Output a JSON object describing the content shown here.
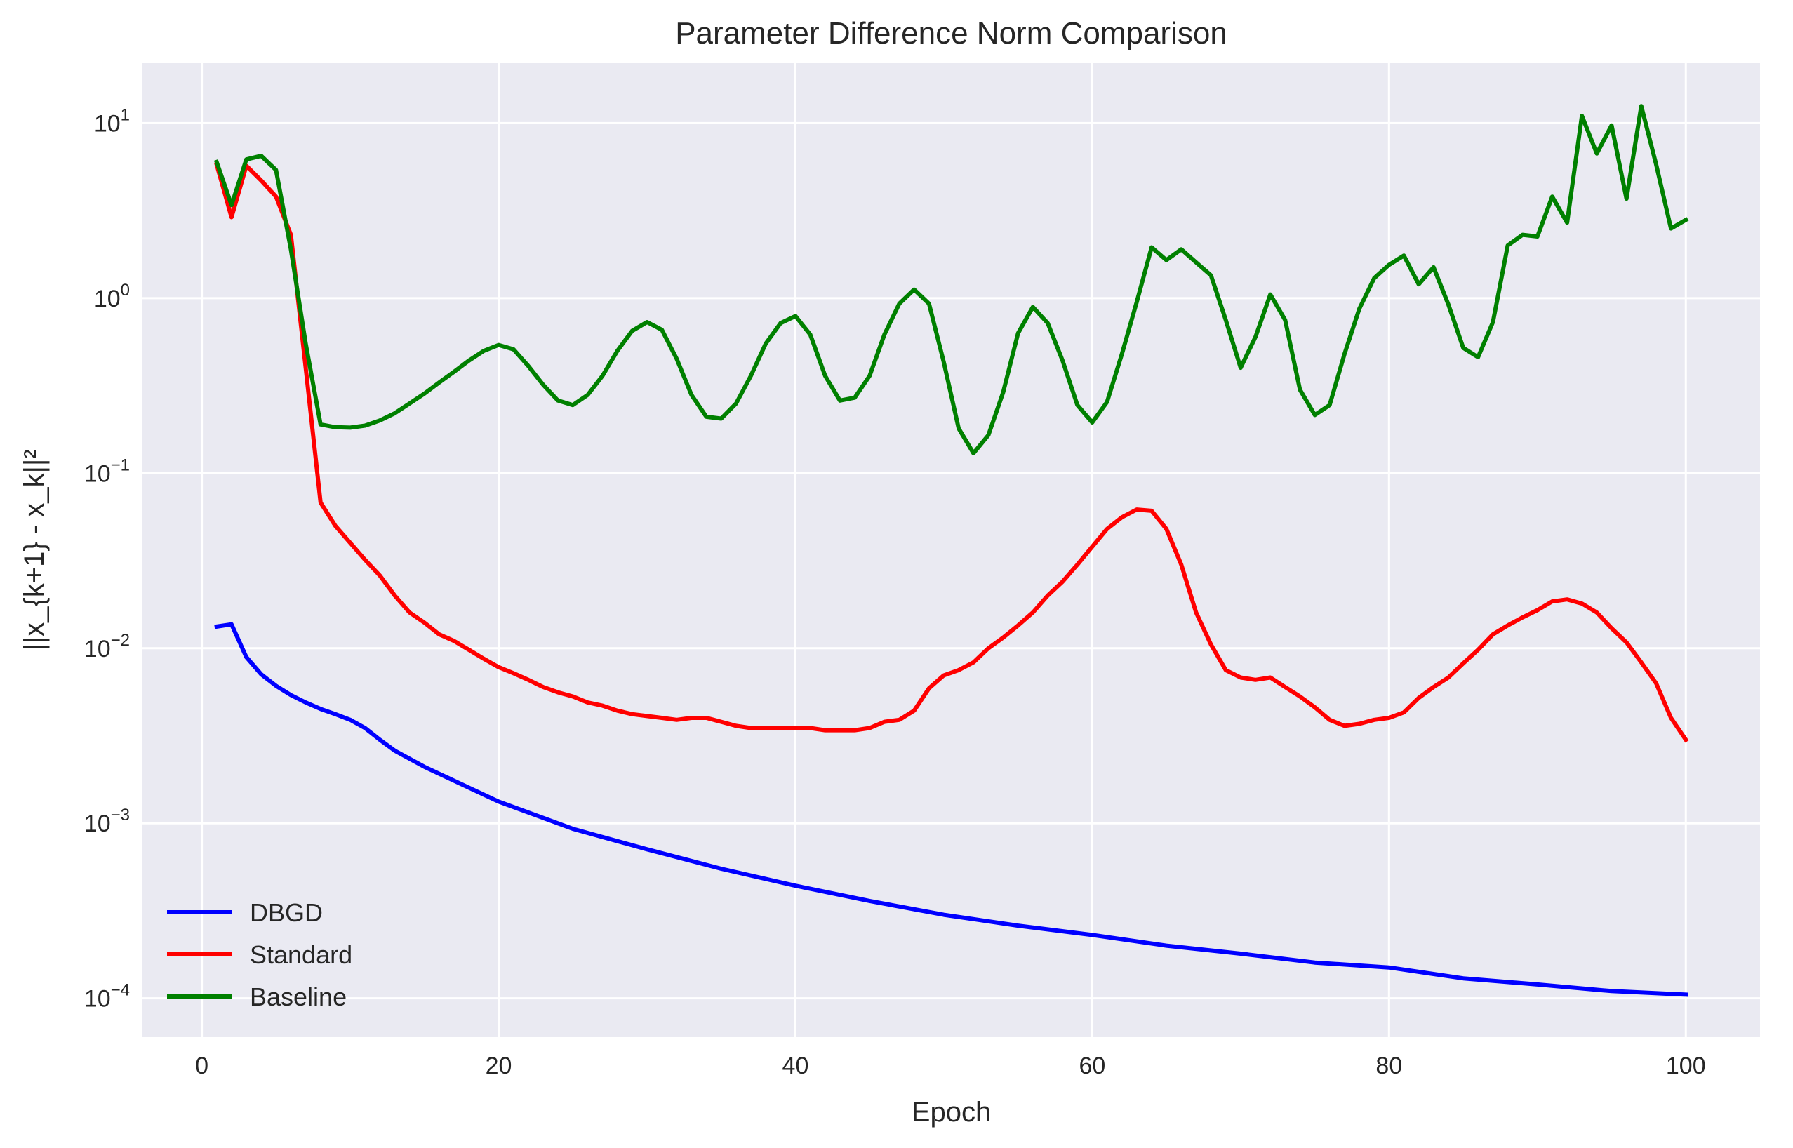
{
  "chart_data": {
    "type": "line",
    "title": "Parameter Difference Norm Comparison",
    "xlabel": "Epoch",
    "ylabel": "||x_{k+1} - x_k||²",
    "xlim": [
      -4,
      105
    ],
    "ylim": [
      6e-05,
      22
    ],
    "yscale": "log",
    "grid": true,
    "legend_position": "lower-left",
    "x_ticks": [
      0,
      20,
      40,
      60,
      80,
      100
    ],
    "y_ticks": [
      {
        "value": 0.0001,
        "base": "10",
        "exp": "−4"
      },
      {
        "value": 0.001,
        "base": "10",
        "exp": "−3"
      },
      {
        "value": 0.01,
        "base": "10",
        "exp": "−2"
      },
      {
        "value": 0.1,
        "base": "10",
        "exp": "−1"
      },
      {
        "value": 1,
        "base": "10",
        "exp": "0"
      },
      {
        "value": 10,
        "base": "10",
        "exp": "1"
      }
    ],
    "series": [
      {
        "name": "DBGD",
        "color": "#0000ff",
        "points": [
          [
            1,
            0.0133
          ],
          [
            2,
            0.0137
          ],
          [
            3,
            0.0089
          ],
          [
            4,
            0.0071
          ],
          [
            5,
            0.0061
          ],
          [
            6,
            0.0054
          ],
          [
            7,
            0.0049
          ],
          [
            8,
            0.0045
          ],
          [
            9,
            0.0042
          ],
          [
            10,
            0.0039
          ],
          [
            11,
            0.0035
          ],
          [
            12,
            0.003
          ],
          [
            13,
            0.0026
          ],
          [
            15,
            0.0021
          ],
          [
            20,
            0.00133
          ],
          [
            25,
            0.00093
          ],
          [
            30,
            0.00071
          ],
          [
            35,
            0.00055
          ],
          [
            40,
            0.00044
          ],
          [
            45,
            0.00036
          ],
          [
            50,
            0.0003
          ],
          [
            55,
            0.00026
          ],
          [
            60,
            0.00023
          ],
          [
            65,
            0.0002
          ],
          [
            70,
            0.00018
          ],
          [
            75,
            0.00016
          ],
          [
            80,
            0.00015
          ],
          [
            85,
            0.00013
          ],
          [
            90,
            0.00012
          ],
          [
            95,
            0.00011
          ],
          [
            100,
            0.000105
          ]
        ]
      },
      {
        "name": "Standard",
        "color": "#ff0000",
        "points": [
          [
            1,
            5.8
          ],
          [
            2,
            2.9
          ],
          [
            3,
            5.7
          ],
          [
            4,
            4.7
          ],
          [
            5,
            3.8
          ],
          [
            6,
            2.3
          ],
          [
            7,
            0.4
          ],
          [
            8,
            0.068
          ],
          [
            9,
            0.05
          ],
          [
            10,
            0.04
          ],
          [
            11,
            0.032
          ],
          [
            12,
            0.026
          ],
          [
            13,
            0.02
          ],
          [
            14,
            0.016
          ],
          [
            15,
            0.014
          ],
          [
            16,
            0.012
          ],
          [
            17,
            0.011
          ],
          [
            18,
            0.0098
          ],
          [
            19,
            0.0087
          ],
          [
            20,
            0.0078
          ],
          [
            21,
            0.0072
          ],
          [
            22,
            0.0066
          ],
          [
            23,
            0.006
          ],
          [
            24,
            0.0056
          ],
          [
            25,
            0.0053
          ],
          [
            26,
            0.0049
          ],
          [
            27,
            0.0047
          ],
          [
            28,
            0.0044
          ],
          [
            29,
            0.0042
          ],
          [
            30,
            0.0041
          ],
          [
            31,
            0.004
          ],
          [
            32,
            0.0039
          ],
          [
            33,
            0.004
          ],
          [
            34,
            0.004
          ],
          [
            35,
            0.0038
          ],
          [
            36,
            0.0036
          ],
          [
            37,
            0.0035
          ],
          [
            38,
            0.0035
          ],
          [
            39,
            0.0035
          ],
          [
            40,
            0.0035
          ],
          [
            41,
            0.0035
          ],
          [
            42,
            0.0034
          ],
          [
            43,
            0.0034
          ],
          [
            44,
            0.0034
          ],
          [
            45,
            0.0035
          ],
          [
            46,
            0.0038
          ],
          [
            47,
            0.0039
          ],
          [
            48,
            0.0044
          ],
          [
            49,
            0.0059
          ],
          [
            50,
            0.007
          ],
          [
            51,
            0.0075
          ],
          [
            52,
            0.0083
          ],
          [
            53,
            0.01
          ],
          [
            54,
            0.0115
          ],
          [
            55,
            0.0135
          ],
          [
            56,
            0.016
          ],
          [
            57,
            0.02
          ],
          [
            58,
            0.024
          ],
          [
            59,
            0.03
          ],
          [
            60,
            0.038
          ],
          [
            61,
            0.048
          ],
          [
            62,
            0.056
          ],
          [
            63,
            0.062
          ],
          [
            64,
            0.061
          ],
          [
            65,
            0.048
          ],
          [
            66,
            0.03
          ],
          [
            67,
            0.016
          ],
          [
            68,
            0.0105
          ],
          [
            69,
            0.0075
          ],
          [
            70,
            0.0068
          ],
          [
            71,
            0.0066
          ],
          [
            72,
            0.0068
          ],
          [
            73,
            0.006
          ],
          [
            74,
            0.0053
          ],
          [
            75,
            0.0046
          ],
          [
            76,
            0.0039
          ],
          [
            77,
            0.0036
          ],
          [
            78,
            0.0037
          ],
          [
            79,
            0.0039
          ],
          [
            80,
            0.004
          ],
          [
            81,
            0.0043
          ],
          [
            82,
            0.0052
          ],
          [
            83,
            0.006
          ],
          [
            84,
            0.0068
          ],
          [
            85,
            0.0082
          ],
          [
            86,
            0.0098
          ],
          [
            87,
            0.012
          ],
          [
            88,
            0.0135
          ],
          [
            89,
            0.015
          ],
          [
            90,
            0.0165
          ],
          [
            91,
            0.0185
          ],
          [
            92,
            0.019
          ],
          [
            93,
            0.018
          ],
          [
            94,
            0.016
          ],
          [
            95,
            0.013
          ],
          [
            96,
            0.0108
          ],
          [
            97,
            0.0083
          ],
          [
            98,
            0.0063
          ],
          [
            99,
            0.004
          ],
          [
            100,
            0.003
          ]
        ]
      },
      {
        "name": "Baseline",
        "color": "#008000",
        "points": [
          [
            1,
            6.0
          ],
          [
            2,
            3.4
          ],
          [
            3,
            6.2
          ],
          [
            4,
            6.5
          ],
          [
            5,
            5.4
          ],
          [
            6,
            1.9
          ],
          [
            7,
            0.55
          ],
          [
            8,
            0.19
          ],
          [
            9,
            0.183
          ],
          [
            10,
            0.182
          ],
          [
            11,
            0.187
          ],
          [
            12,
            0.2
          ],
          [
            13,
            0.22
          ],
          [
            14,
            0.25
          ],
          [
            15,
            0.285
          ],
          [
            16,
            0.33
          ],
          [
            17,
            0.38
          ],
          [
            18,
            0.44
          ],
          [
            19,
            0.5
          ],
          [
            20,
            0.54
          ],
          [
            21,
            0.51
          ],
          [
            22,
            0.41
          ],
          [
            23,
            0.32
          ],
          [
            24,
            0.26
          ],
          [
            25,
            0.245
          ],
          [
            26,
            0.28
          ],
          [
            27,
            0.36
          ],
          [
            28,
            0.5
          ],
          [
            29,
            0.65
          ],
          [
            30,
            0.73
          ],
          [
            31,
            0.66
          ],
          [
            32,
            0.45
          ],
          [
            33,
            0.28
          ],
          [
            34,
            0.21
          ],
          [
            35,
            0.205
          ],
          [
            36,
            0.25
          ],
          [
            37,
            0.36
          ],
          [
            38,
            0.55
          ],
          [
            39,
            0.72
          ],
          [
            40,
            0.79
          ],
          [
            41,
            0.62
          ],
          [
            42,
            0.36
          ],
          [
            43,
            0.26
          ],
          [
            44,
            0.27
          ],
          [
            45,
            0.36
          ],
          [
            46,
            0.62
          ],
          [
            47,
            0.93
          ],
          [
            48,
            1.12
          ],
          [
            49,
            0.93
          ],
          [
            50,
            0.43
          ],
          [
            51,
            0.18
          ],
          [
            52,
            0.13
          ],
          [
            53,
            0.165
          ],
          [
            54,
            0.29
          ],
          [
            55,
            0.63
          ],
          [
            56,
            0.89
          ],
          [
            57,
            0.72
          ],
          [
            58,
            0.44
          ],
          [
            59,
            0.245
          ],
          [
            60,
            0.195
          ],
          [
            61,
            0.255
          ],
          [
            62,
            0.48
          ],
          [
            63,
            0.95
          ],
          [
            64,
            1.95
          ],
          [
            65,
            1.65
          ],
          [
            66,
            1.9
          ],
          [
            67,
            1.6
          ],
          [
            68,
            1.35
          ],
          [
            69,
            0.75
          ],
          [
            70,
            0.4
          ],
          [
            71,
            0.6
          ],
          [
            72,
            1.05
          ],
          [
            73,
            0.75
          ],
          [
            74,
            0.3
          ],
          [
            75,
            0.215
          ],
          [
            76,
            0.245
          ],
          [
            77,
            0.48
          ],
          [
            78,
            0.87
          ],
          [
            79,
            1.3
          ],
          [
            80,
            1.55
          ],
          [
            81,
            1.75
          ],
          [
            82,
            1.2
          ],
          [
            83,
            1.5
          ],
          [
            84,
            0.92
          ],
          [
            85,
            0.52
          ],
          [
            86,
            0.46
          ],
          [
            87,
            0.73
          ],
          [
            88,
            2.0
          ],
          [
            89,
            2.3
          ],
          [
            90,
            2.25
          ],
          [
            91,
            3.8
          ],
          [
            92,
            2.7
          ],
          [
            93,
            11.0
          ],
          [
            94,
            6.7
          ],
          [
            95,
            9.7
          ],
          [
            96,
            3.7
          ],
          [
            97,
            12.5
          ],
          [
            98,
            5.8
          ],
          [
            99,
            2.5
          ],
          [
            100,
            2.8
          ]
        ]
      }
    ]
  }
}
